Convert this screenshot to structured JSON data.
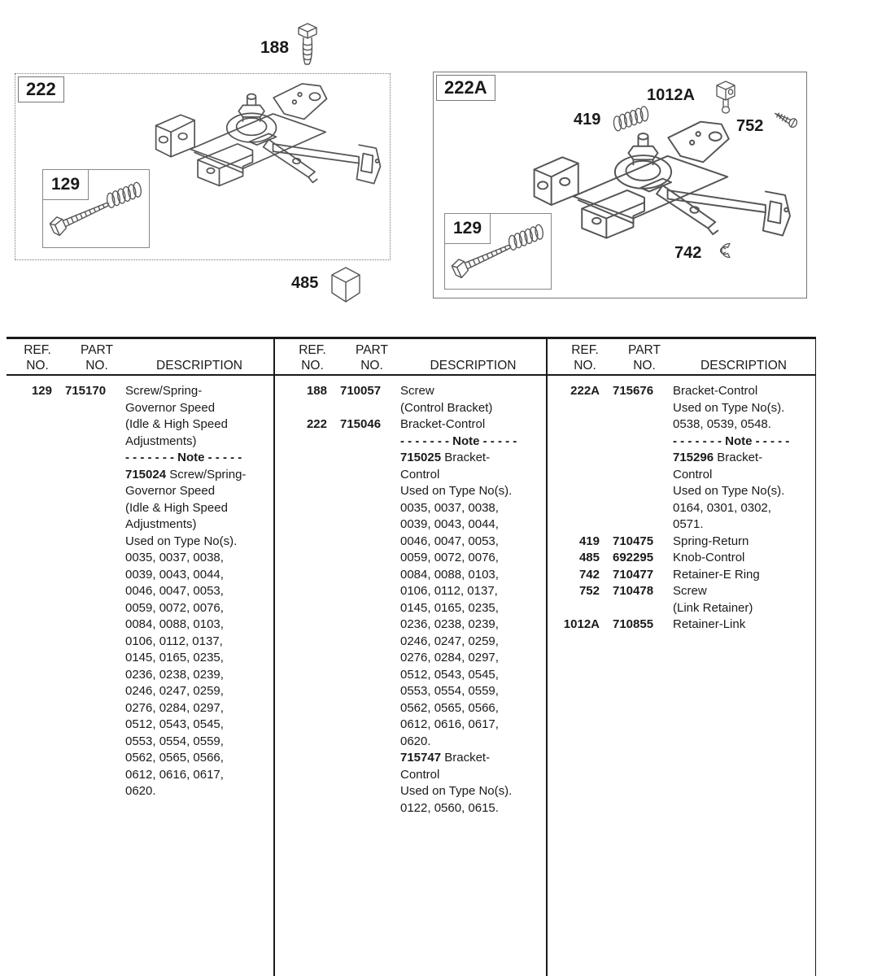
{
  "diagram": {
    "part_188": {
      "label": "188",
      "icon": "hex-screw-icon"
    },
    "part_485": {
      "label": "485",
      "icon": "control-knob-cube-icon"
    },
    "box_222": {
      "label": "222",
      "inner_129": {
        "label": "129",
        "icons": [
          "hex-bolt-icon",
          "spring-icon"
        ]
      },
      "icon": "control-bracket-assembly-drawing"
    },
    "box_222a": {
      "label": "222A",
      "part_419": {
        "label": "419",
        "icon": "return-spring-icon"
      },
      "part_1012a": {
        "label": "1012A",
        "icon": "link-retainer-cube-icon"
      },
      "part_752": {
        "label": "752",
        "icon": "small-screw-icon"
      },
      "part_742": {
        "label": "742",
        "icon": "e-ring-icon"
      },
      "inner_129": {
        "label": "129",
        "icons": [
          "hex-bolt-icon",
          "spring-icon"
        ]
      },
      "icon": "control-bracket-assembly-drawing"
    }
  },
  "table": {
    "header": {
      "ref": "REF.",
      "part": "PART",
      "no": "NO.",
      "description": "DESCRIPTION"
    },
    "columns": [
      {
        "entries": [
          {
            "ref": "129",
            "part": "715170",
            "lines": [
              {
                "t": "Screw/Spring-"
              },
              {
                "t": "Governor Speed"
              },
              {
                "t": "(Idle & High Speed"
              },
              {
                "t": "Adjustments)"
              },
              {
                "b": "- - - - - - - Note - - - - -"
              },
              {
                "b": "715024",
                "t": " Screw/Spring-"
              },
              {
                "t": "Governor Speed"
              },
              {
                "t": "(Idle & High Speed"
              },
              {
                "t": "Adjustments)"
              },
              {
                "t": "Used on Type No(s)."
              },
              {
                "t": "0035, 0037, 0038,"
              },
              {
                "t": "0039, 0043, 0044,"
              },
              {
                "t": "0046, 0047, 0053,"
              },
              {
                "t": "0059, 0072, 0076,"
              },
              {
                "t": "0084, 0088, 0103,"
              },
              {
                "t": "0106, 0112, 0137,"
              },
              {
                "t": "0145, 0165, 0235,"
              },
              {
                "t": "0236, 0238, 0239,"
              },
              {
                "t": "0246, 0247, 0259,"
              },
              {
                "t": "0276, 0284, 0297,"
              },
              {
                "t": "0512, 0543, 0545,"
              },
              {
                "t": "0553, 0554, 0559,"
              },
              {
                "t": "0562, 0565, 0566,"
              },
              {
                "t": "0612, 0616, 0617,"
              },
              {
                "t": "0620."
              }
            ]
          }
        ]
      },
      {
        "entries": [
          {
            "ref": "188",
            "part": "710057",
            "lines": [
              {
                "t": "Screw"
              },
              {
                "t": "(Control Bracket)"
              }
            ]
          },
          {
            "ref": "222",
            "part": "715046",
            "lines": [
              {
                "t": "Bracket-Control"
              },
              {
                "b": "- - - - - - - Note - - - - -"
              },
              {
                "b": "715025",
                "t": " Bracket-"
              },
              {
                "t": "Control"
              },
              {
                "t": "Used on Type No(s)."
              },
              {
                "t": "0035, 0037, 0038,"
              },
              {
                "t": "0039, 0043, 0044,"
              },
              {
                "t": "0046, 0047, 0053,"
              },
              {
                "t": "0059, 0072, 0076,"
              },
              {
                "t": "0084, 0088, 0103,"
              },
              {
                "t": "0106, 0112, 0137,"
              },
              {
                "t": "0145, 0165, 0235,"
              },
              {
                "t": "0236, 0238, 0239,"
              },
              {
                "t": "0246, 0247, 0259,"
              },
              {
                "t": "0276, 0284, 0297,"
              },
              {
                "t": "0512, 0543, 0545,"
              },
              {
                "t": "0553, 0554, 0559,"
              },
              {
                "t": "0562, 0565, 0566,"
              },
              {
                "t": "0612, 0616, 0617,"
              },
              {
                "t": "0620."
              },
              {
                "b": "715747",
                "t": " Bracket-"
              },
              {
                "t": "Control"
              },
              {
                "t": "Used on Type No(s)."
              },
              {
                "t": "0122, 0560, 0615."
              }
            ]
          }
        ]
      },
      {
        "entries": [
          {
            "ref": "222A",
            "part": "715676",
            "lines": [
              {
                "t": "Bracket-Control"
              },
              {
                "t": "Used on Type No(s)."
              },
              {
                "t": "0538, 0539, 0548."
              },
              {
                "b": "- - - - - - - Note - - - - -"
              },
              {
                "b": "715296",
                "t": " Bracket-"
              },
              {
                "t": "Control"
              },
              {
                "t": "Used on Type No(s)."
              },
              {
                "t": "0164, 0301, 0302,"
              },
              {
                "t": "0571."
              }
            ]
          },
          {
            "ref": "419",
            "part": "710475",
            "lines": [
              {
                "t": "Spring-Return"
              }
            ]
          },
          {
            "ref": "485",
            "part": "692295",
            "lines": [
              {
                "t": "Knob-Control"
              }
            ]
          },
          {
            "ref": "742",
            "part": "710477",
            "lines": [
              {
                "t": "Retainer-E Ring"
              }
            ]
          },
          {
            "ref": "752",
            "part": "710478",
            "lines": [
              {
                "t": "Screw"
              },
              {
                "t": "(Link Retainer)"
              }
            ]
          },
          {
            "ref": "1012A",
            "part": "710855",
            "lines": [
              {
                "t": "Retainer-Link"
              }
            ]
          }
        ]
      }
    ]
  }
}
